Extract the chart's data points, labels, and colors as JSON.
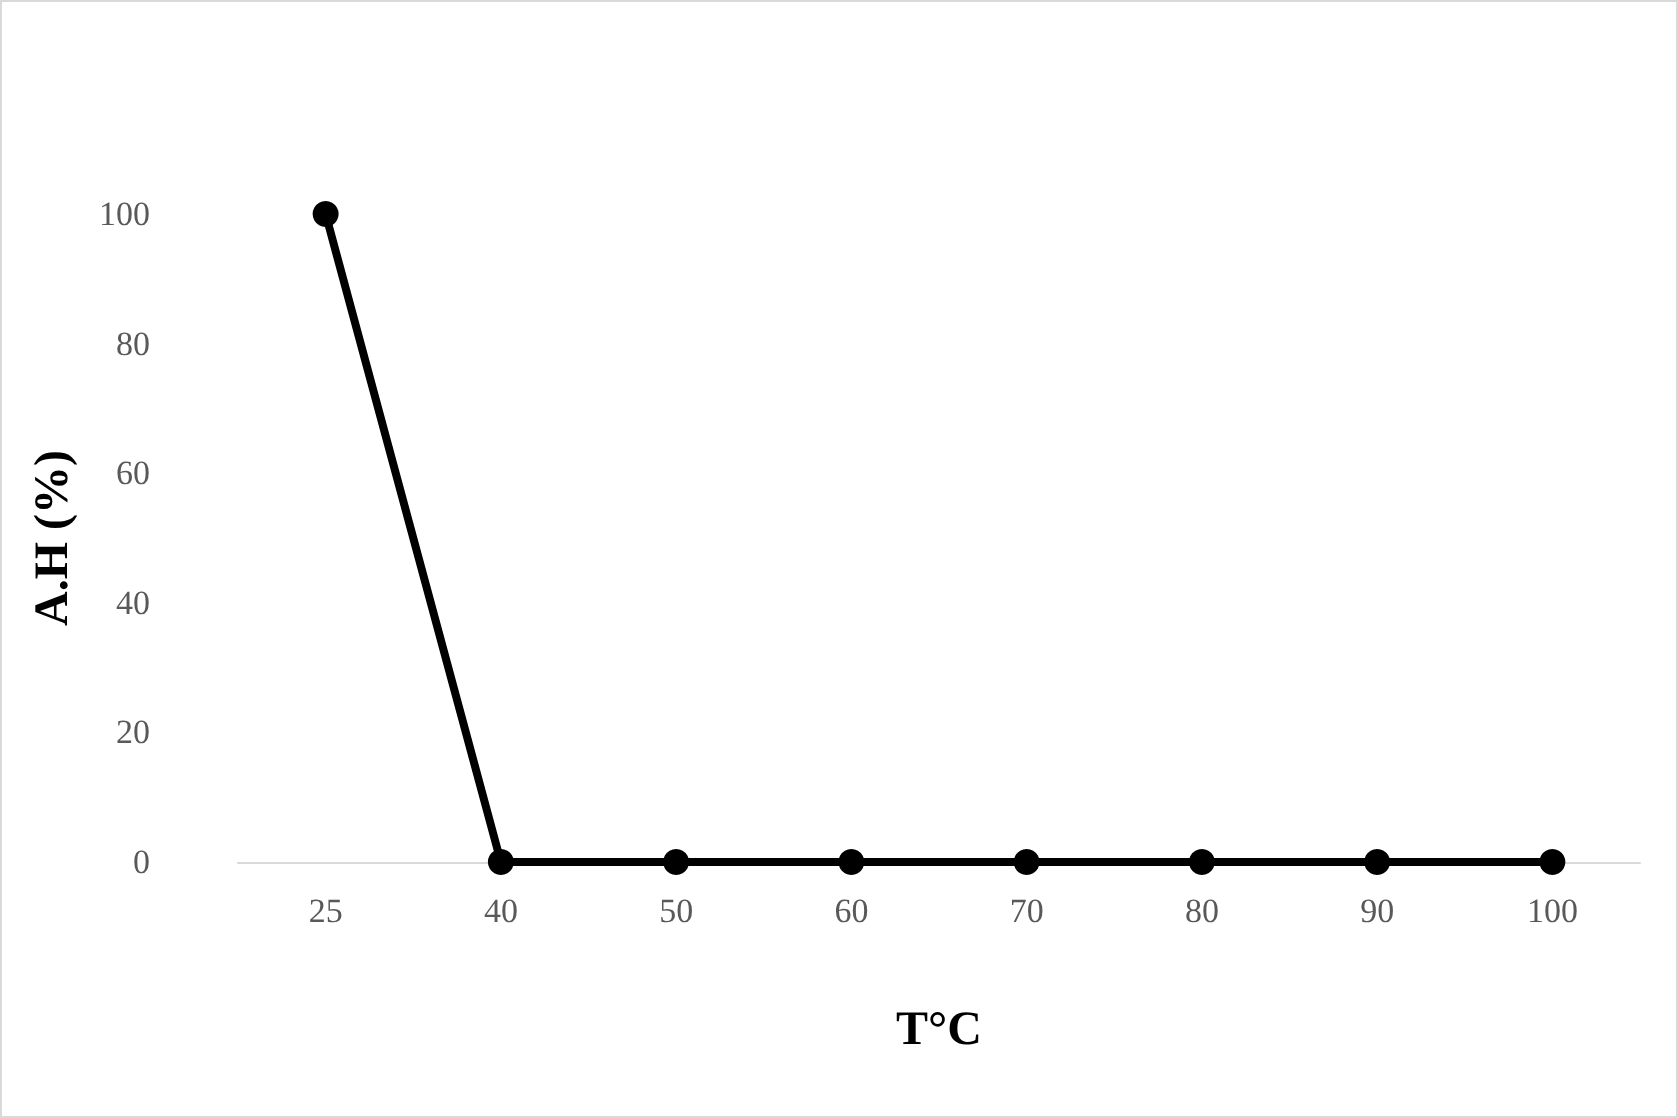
{
  "chart_data": {
    "type": "line",
    "xlabel": "T°C",
    "ylabel": "A.H (%)",
    "categories": [
      "25",
      "40",
      "50",
      "60",
      "70",
      "80",
      "90",
      "100"
    ],
    "series": [
      {
        "color": "#000000",
        "values": [
          100,
          0,
          0,
          0,
          0,
          0,
          0,
          0
        ]
      }
    ],
    "ylim": [
      0,
      100
    ],
    "yticks": [
      0,
      20,
      40,
      60,
      80,
      100
    ],
    "grid": false,
    "marker": "circle",
    "line_style": "solid"
  }
}
